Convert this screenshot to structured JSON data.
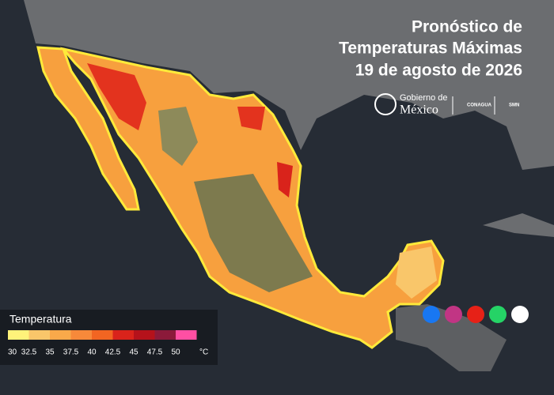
{
  "header": {
    "title_lines": [
      "Pronóstico de",
      "Temperaturas Máximas",
      "19 de agosto de 2026"
    ]
  },
  "logos": {
    "gobierno_top": "Gobierno de",
    "gobierno_bottom": "México",
    "conagua": "CONAGUA",
    "smn": "SMN"
  },
  "legend": {
    "title": "Temperatura",
    "unit": "°C",
    "ticks": [
      30,
      32.5,
      35,
      37.5,
      40,
      42.5,
      45,
      47.5,
      50
    ],
    "colors": [
      "#fff27a",
      "#f9c66a",
      "#f9a94a",
      "#f7893a",
      "#f26522",
      "#d9231b",
      "#b5121b",
      "#8b1a3a",
      "#ff4fa3"
    ]
  }
}
